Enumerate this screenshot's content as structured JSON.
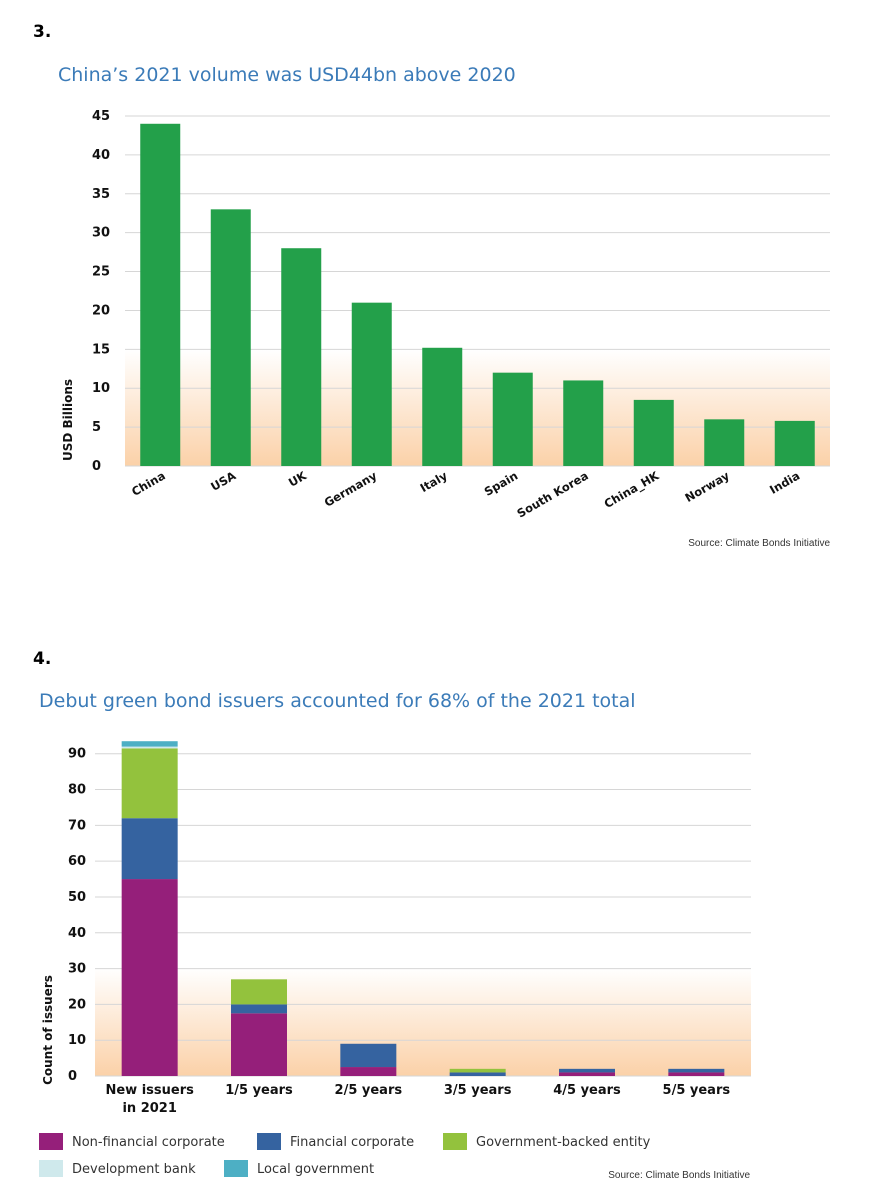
{
  "chart_data": [
    {
      "number_label": "3.",
      "type": "bar",
      "title": "China’s 2021 volume was USD44bn above 2020",
      "ylabel": "USD Billions",
      "xlabel": "",
      "ylim": [
        0,
        45
      ],
      "yticks": [
        0,
        5,
        10,
        15,
        20,
        25,
        30,
        35,
        40,
        45
      ],
      "grid": true,
      "categories": [
        "China",
        "USA",
        "UK",
        "Germany",
        "Italy",
        "Spain",
        "South Korea",
        "China_HK",
        "Norway",
        "India"
      ],
      "values": [
        44,
        33,
        28,
        21,
        15.2,
        12,
        11,
        8.5,
        6,
        5.8
      ],
      "bar_color": "#23a04a",
      "source": "Source: Climate Bonds Initiative"
    },
    {
      "number_label": "4.",
      "type": "bar",
      "stacked": true,
      "title": "Debut green bond issuers accounted for 68% of the 2021 total",
      "ylabel": "Count of issuers",
      "xlabel": "",
      "ylim": [
        0,
        93
      ],
      "yticks": [
        0,
        10,
        20,
        30,
        40,
        50,
        60,
        70,
        80,
        90
      ],
      "grid": true,
      "categories": [
        "New issuers in 2021",
        "1/5 years",
        "2/5 years",
        "3/5 years",
        "4/5 years",
        "5/5 years"
      ],
      "category_lines": [
        [
          "New issuers",
          "in 2021"
        ],
        [
          "1/5 years"
        ],
        [
          "2/5 years"
        ],
        [
          "3/5 years"
        ],
        [
          "4/5 years"
        ],
        [
          "5/5 years"
        ]
      ],
      "series": [
        {
          "name": "Non-financial corporate",
          "color": "#951f7a",
          "values": [
            55,
            17.5,
            2.5,
            0,
            1,
            1
          ]
        },
        {
          "name": "Financial corporate",
          "color": "#3563a0",
          "values": [
            17,
            2.5,
            6.5,
            1,
            1,
            1
          ]
        },
        {
          "name": "Government-backed entity",
          "color": "#93c23d",
          "values": [
            19.5,
            7,
            0,
            1,
            0,
            0
          ]
        },
        {
          "name": "Development bank",
          "color": "#cfe9ec",
          "values": [
            0.5,
            0,
            0,
            0,
            0,
            0
          ]
        },
        {
          "name": "Local government",
          "color": "#4dafc4",
          "values": [
            1.5,
            0,
            0,
            0,
            0,
            0
          ]
        }
      ],
      "legend_position": "bottom",
      "source": "Source: Climate Bonds Initiative"
    }
  ]
}
